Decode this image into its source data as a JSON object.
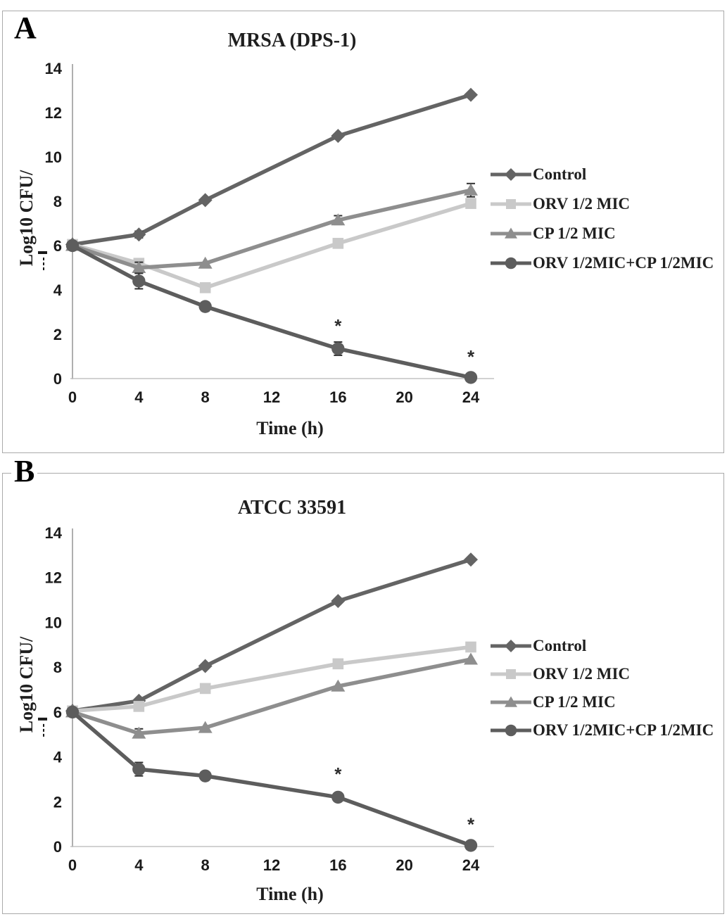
{
  "figure": {
    "background": "#ffffff",
    "frame_color": "#aaaaaa",
    "text_color": "#1a1a1a"
  },
  "panels": [
    {
      "letter": "A"
    },
    {
      "letter": "B"
    }
  ],
  "chart_data": [
    {
      "type": "line",
      "title": "MRSA (DPS-1)",
      "xlabel": "Time (h)",
      "ylabel": "Log10 CFU/",
      "xlim": [
        0,
        24
      ],
      "ylim": [
        0,
        14
      ],
      "xticks": [
        0,
        4,
        8,
        12,
        16,
        20,
        24
      ],
      "yticks": [
        0,
        2,
        4,
        6,
        8,
        10,
        12,
        14
      ],
      "x": [
        0,
        4,
        8,
        16,
        24
      ],
      "grid": false,
      "legend_position": "right",
      "axis_color": "#9b9b9b",
      "baseline_color": "#c4c4c4",
      "error_bar_color": "#2f2f2f",
      "series": [
        {
          "name": "Control",
          "marker": "diamond",
          "color": "#646464",
          "values": [
            6.05,
            6.5,
            8.05,
            10.95,
            12.8
          ],
          "error_bars": {
            "4": 0.15
          }
        },
        {
          "name": "ORV 1/2 MIC",
          "marker": "square",
          "color": "#c9c9c9",
          "values": [
            6.05,
            5.2,
            4.1,
            6.1,
            7.9
          ],
          "error_bars": {
            "4": 0.2,
            "16": 0.15
          }
        },
        {
          "name": "CP 1/2 MIC",
          "marker": "triangle",
          "color": "#8e8e8e",
          "values": [
            6.0,
            5.0,
            5.2,
            7.15,
            8.5
          ],
          "error_bars": {
            "4": 0.25,
            "16": 0.2,
            "24": 0.3
          }
        },
        {
          "name": "ORV 1/2MIC+CP 1/2MIC",
          "marker": "circle",
          "color": "#5d5d5d",
          "values": [
            6.0,
            4.4,
            3.25,
            1.35,
            0.05
          ],
          "error_bars": {
            "4": 0.35,
            "8": 0.2,
            "16": 0.3
          }
        }
      ],
      "annotations": [
        {
          "x": 16,
          "y": 2.35,
          "text": "*"
        },
        {
          "x": 24,
          "y": 0.95,
          "text": "*"
        }
      ]
    },
    {
      "type": "line",
      "title": "ATCC 33591",
      "xlabel": "Time (h)",
      "ylabel": "Log10 CFU/",
      "xlim": [
        0,
        24
      ],
      "ylim": [
        0,
        14
      ],
      "xticks": [
        0,
        4,
        8,
        12,
        16,
        20,
        24
      ],
      "yticks": [
        0,
        2,
        4,
        6,
        8,
        10,
        12,
        14
      ],
      "x": [
        0,
        4,
        8,
        16,
        24
      ],
      "grid": false,
      "legend_position": "right",
      "axis_color": "#9b9b9b",
      "baseline_color": "#c4c4c4",
      "error_bar_color": "#2f2f2f",
      "series": [
        {
          "name": "Control",
          "marker": "diamond",
          "color": "#646464",
          "values": [
            6.05,
            6.5,
            8.05,
            10.95,
            12.8
          ]
        },
        {
          "name": "ORV 1/2 MIC",
          "marker": "square",
          "color": "#c9c9c9",
          "values": [
            6.05,
            6.25,
            7.05,
            8.15,
            8.9
          ]
        },
        {
          "name": "CP 1/2 MIC",
          "marker": "triangle",
          "color": "#8e8e8e",
          "values": [
            6.0,
            5.05,
            5.3,
            7.15,
            8.35
          ],
          "error_bars": {
            "4": 0.2
          }
        },
        {
          "name": "ORV 1/2MIC+CP 1/2MIC",
          "marker": "circle",
          "color": "#5d5d5d",
          "values": [
            6.0,
            3.45,
            3.15,
            2.2,
            0.05
          ],
          "error_bars": {
            "4": 0.3
          }
        }
      ],
      "annotations": [
        {
          "x": 16,
          "y": 3.2,
          "text": "*"
        },
        {
          "x": 24,
          "y": 0.95,
          "text": "*"
        }
      ]
    }
  ]
}
